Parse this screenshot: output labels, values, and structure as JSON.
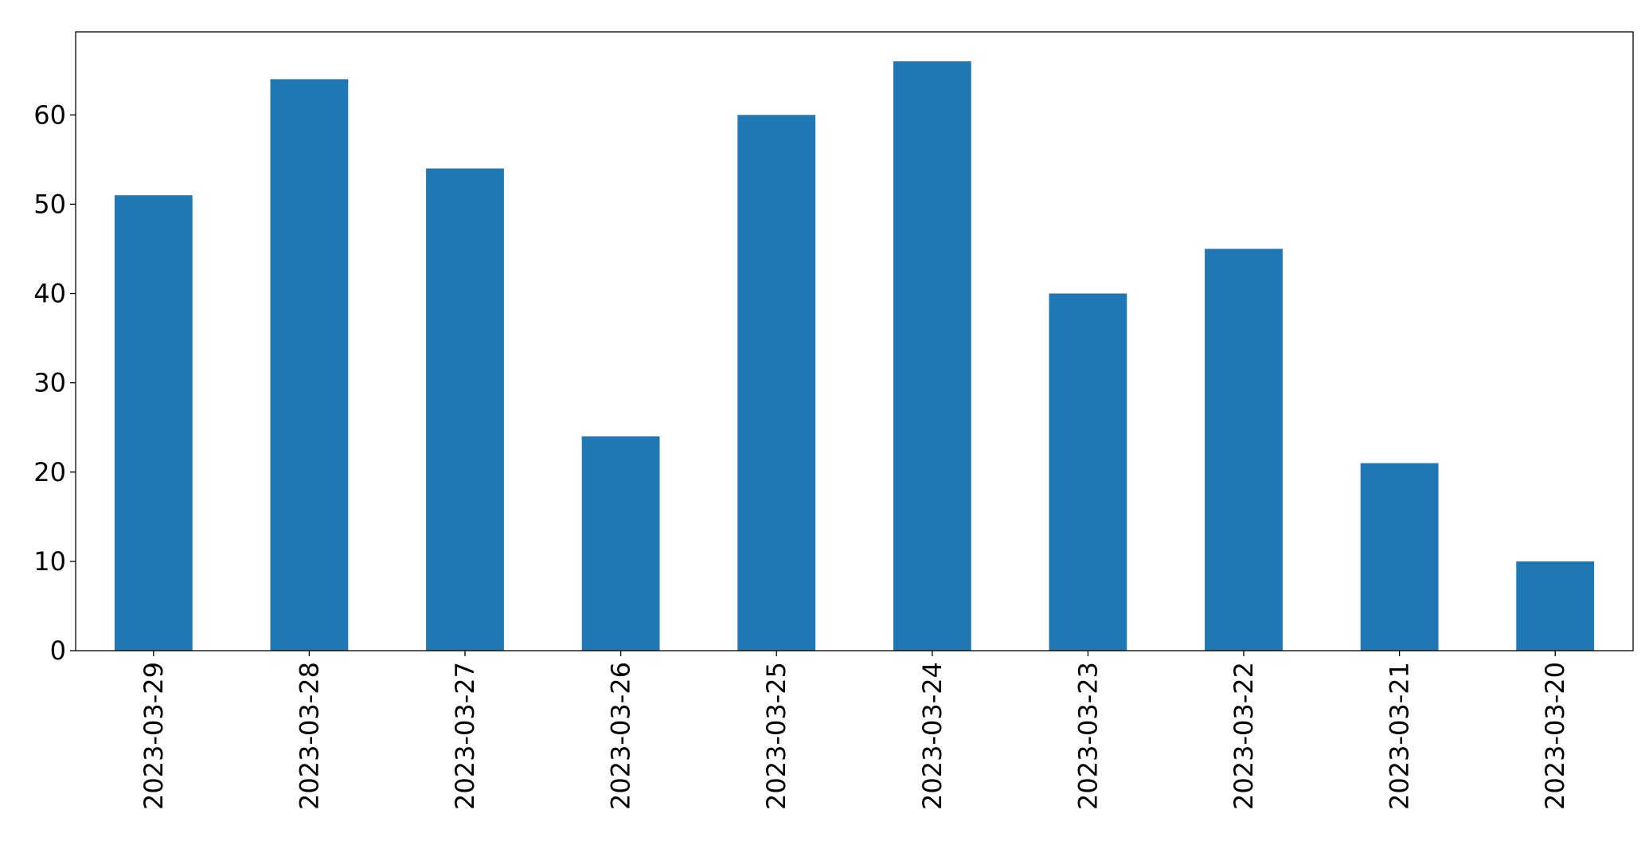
{
  "chart_data": {
    "type": "bar",
    "categories": [
      "2023-03-29",
      "2023-03-28",
      "2023-03-27",
      "2023-03-26",
      "2023-03-25",
      "2023-03-24",
      "2023-03-23",
      "2023-03-22",
      "2023-03-21",
      "2023-03-20"
    ],
    "values": [
      51,
      64,
      54,
      24,
      60,
      66,
      40,
      45,
      21,
      10
    ],
    "color": "#1f77b4",
    "ylim": [
      0,
      69.3
    ],
    "yticks": [
      0,
      10,
      20,
      30,
      40,
      50,
      60
    ],
    "grid": false
  }
}
